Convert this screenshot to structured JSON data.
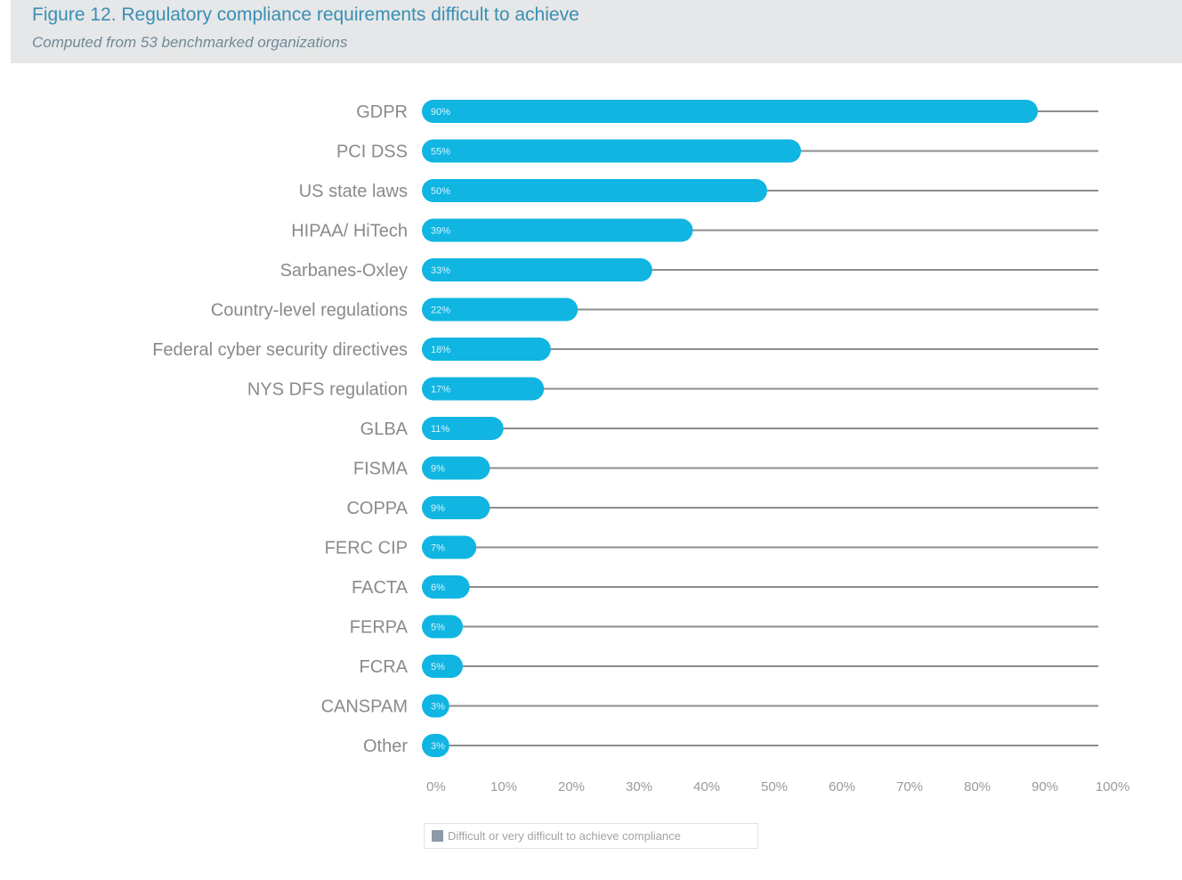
{
  "header": {
    "title": "Figure 12. Regulatory compliance requirements difficult to achieve",
    "subtitle": "Computed from 53 benchmarked organizations"
  },
  "chart_data": {
    "type": "bar",
    "orientation": "horizontal",
    "title": "Figure 12. Regulatory compliance requirements difficult to achieve",
    "subtitle": "Computed from 53 benchmarked organizations",
    "categories": [
      "GDPR",
      "PCI DSS",
      "US state laws",
      "HIPAA/ HiTech",
      "Sarbanes-Oxley",
      "Country-level regulations",
      "Federal cyber security directives",
      "NYS DFS regulation",
      "GLBA",
      "FISMA",
      "COPPA",
      "FERC CIP",
      "FACTA",
      "FERPA",
      "FCRA",
      "CANSPAM",
      "Other"
    ],
    "series": [
      {
        "name": "Difficult or very difficult to achieve compliance",
        "values": [
          90,
          55,
          50,
          39,
          33,
          22,
          18,
          17,
          11,
          9,
          9,
          7,
          6,
          5,
          5,
          3,
          3
        ],
        "labels": [
          "90%",
          "55%",
          "50%",
          "39%",
          "33%",
          "22%",
          "18%",
          "17%",
          "11%",
          "9%",
          "9%",
          "7%",
          "6%",
          "5%",
          "5%",
          "3%",
          "3%"
        ]
      }
    ],
    "xlim": [
      0,
      100
    ],
    "xticks": [
      "0%",
      "10%",
      "20%",
      "30%",
      "40%",
      "50%",
      "60%",
      "70%",
      "80%",
      "90%",
      "100%"
    ],
    "xlabel": "",
    "ylabel": "",
    "grid": false,
    "legend_position": "bottom-center",
    "colors": {
      "bar": "#10b5e2",
      "track": "#8c8c8c",
      "legend_swatch": "#8e99a8"
    }
  },
  "legend": {
    "label": "Difficult or very difficult to achieve compliance"
  }
}
